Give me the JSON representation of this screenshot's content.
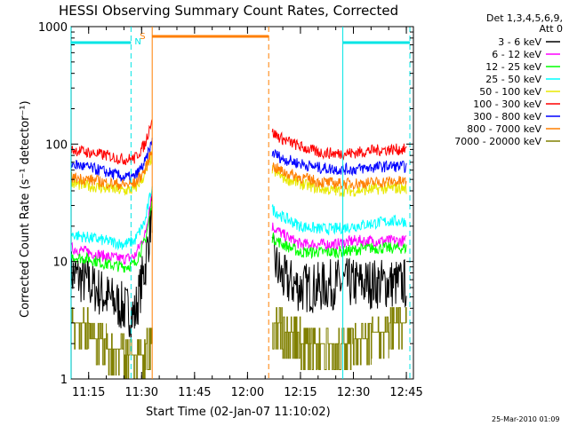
{
  "chart_data": {
    "type": "line",
    "title": "HESSI Observing Summary Count Rates, Corrected",
    "xlabel": "Start Time (02-Jan-07 11:10:02)",
    "ylabel": "Corrected Count Rate (s⁻¹ detector⁻¹)",
    "yscale": "log",
    "ylim": [
      1,
      1000
    ],
    "xlim": [
      "11:10:02",
      "12:47"
    ],
    "x_ticks": [
      "11:15",
      "11:30",
      "11:45",
      "12:00",
      "12:15",
      "12:30",
      "12:45"
    ],
    "y_ticks": [
      "1",
      "10",
      "100",
      "1000"
    ],
    "legend_title": [
      "Det 1,3,4,5,6,9,",
      "Att 0"
    ],
    "legend_position": "right",
    "datestamp": "25-Mar-2010 01:09",
    "annotations": {
      "night_label": "N",
      "saa_label": "S",
      "night_color": "#00e5e5",
      "saa_color": "#ff7f00",
      "night_markers": [
        "11:10",
        "11:27",
        "12:27",
        "12:46"
      ],
      "saa_markers": [
        "11:33",
        "12:06"
      ]
    },
    "x": [
      "11:10",
      "11:15",
      "11:20",
      "11:25",
      "11:28",
      "11:31",
      "11:33",
      "12:07",
      "12:10",
      "12:15",
      "12:20",
      "12:25",
      "12:30",
      "12:35",
      "12:40",
      "12:45"
    ],
    "series": [
      {
        "name": "3 - 6 keV",
        "color": "#000000",
        "values": [
          8,
          6.5,
          5,
          4,
          3.5,
          9,
          28,
          11,
          7,
          6,
          6,
          6.5,
          6.5,
          6.5,
          6.5,
          6.5
        ]
      },
      {
        "name": "6 - 12 keV",
        "color": "#ff00ff",
        "values": [
          13,
          12,
          11,
          10.5,
          11,
          17,
          40,
          20,
          17,
          14,
          14,
          14,
          15,
          15,
          15,
          15
        ]
      },
      {
        "name": "12 - 25 keV",
        "color": "#00ff00",
        "values": [
          11,
          10.5,
          9.5,
          9,
          9.5,
          15,
          32,
          16,
          14,
          12,
          12,
          12,
          12.5,
          13,
          13,
          13
        ]
      },
      {
        "name": "25 - 50 keV",
        "color": "#00ffff",
        "values": [
          17,
          16,
          15,
          14,
          15,
          22,
          45,
          28,
          24,
          20,
          19,
          19,
          20,
          21,
          22,
          22
        ]
      },
      {
        "name": "50 - 100 keV",
        "color": "#e8e800",
        "values": [
          46,
          44,
          42,
          40,
          41,
          55,
          80,
          60,
          52,
          46,
          42,
          40,
          40,
          41,
          42,
          42
        ]
      },
      {
        "name": "100 - 300 keV",
        "color": "#ff0000",
        "values": [
          90,
          85,
          80,
          74,
          75,
          100,
          170,
          125,
          110,
          95,
          85,
          83,
          84,
          88,
          90,
          90
        ]
      },
      {
        "name": "300 - 800 keV",
        "color": "#0000ff",
        "values": [
          68,
          63,
          58,
          52,
          52,
          70,
          105,
          85,
          75,
          68,
          63,
          61,
          61,
          63,
          65,
          64
        ]
      },
      {
        "name": "800 - 7000 keV",
        "color": "#ff7f00",
        "values": [
          52,
          50,
          47,
          45,
          46,
          60,
          90,
          65,
          58,
          52,
          48,
          46,
          46,
          47,
          48,
          48
        ]
      },
      {
        "name": "7000 - 20000 keV",
        "color": "#808000",
        "values": [
          3,
          2.2,
          1.8,
          1.6,
          1.6,
          2,
          3.5,
          3,
          2.5,
          2,
          2,
          2,
          2.2,
          2.5,
          3,
          3
        ]
      }
    ]
  }
}
